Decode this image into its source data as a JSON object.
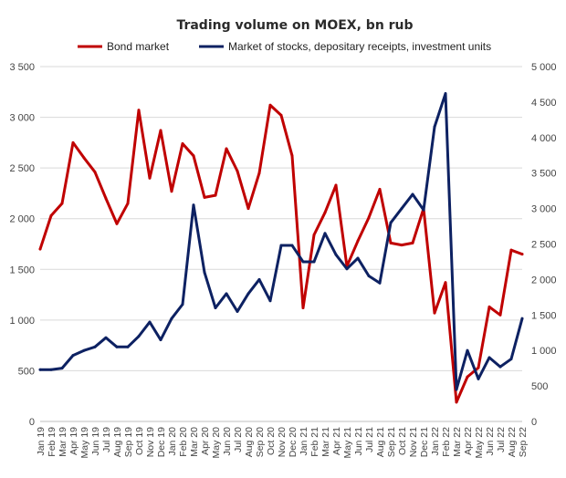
{
  "chart_data": {
    "type": "line",
    "title": "Trading volume on MOEX, bn rub",
    "legend_placement": "top",
    "grid": true,
    "x": [
      "Jan 19",
      "Feb 19",
      "Mar 19",
      "Apr 19",
      "May 19",
      "Jun 19",
      "Jul 19",
      "Aug 19",
      "Sep 19",
      "Oct 19",
      "Nov 19",
      "Dec 19",
      "Jan 20",
      "Feb 20",
      "Mar 20",
      "Apr 20",
      "May 20",
      "Jun 20",
      "Jul 20",
      "Aug 20",
      "Sep 20",
      "Oct 20",
      "Nov 20",
      "Dec 20",
      "Jan 21",
      "Feb 21",
      "Mar 21",
      "Apr 21",
      "May 21",
      "Jun 21",
      "Jul 21",
      "Aug 21",
      "Sep 21",
      "Oct 21",
      "Nov 21",
      "Dec 21",
      "Jan 22",
      "Feb 22",
      "Mar 22",
      "Apr 22",
      "May 22",
      "Jun 22",
      "Jul 22",
      "Aug 22",
      "Sep 22"
    ],
    "y_left": {
      "ylim": [
        0,
        3500
      ],
      "ticks": [
        0,
        500,
        1000,
        1500,
        2000,
        2500,
        3000,
        3500
      ],
      "tick_labels": [
        "0",
        "500",
        "1 000",
        "1 500",
        "2 000",
        "2 500",
        "3 000",
        "3 500"
      ]
    },
    "y_right": {
      "ylim": [
        0,
        5000
      ],
      "ticks": [
        0,
        500,
        1000,
        1500,
        2000,
        2500,
        3000,
        3500,
        4000,
        4500,
        5000
      ],
      "tick_labels": [
        "0",
        "500",
        "1 000",
        "1 500",
        "2 000",
        "2 500",
        "3 000",
        "3 500",
        "4 000",
        "4 500",
        "5 000"
      ]
    },
    "series": [
      {
        "name": "Bond market",
        "axis": "left",
        "color": "#c00000",
        "values": [
          1700,
          2030,
          2150,
          2750,
          2600,
          2460,
          2200,
          1950,
          2150,
          3070,
          2400,
          2870,
          2270,
          2740,
          2620,
          2210,
          2230,
          2690,
          2470,
          2100,
          2450,
          3120,
          3020,
          2620,
          1120,
          1840,
          2060,
          2330,
          1530,
          1780,
          2010,
          2290,
          1760,
          1740,
          1760,
          2100,
          1070,
          1370,
          190,
          440,
          530,
          1130,
          1050,
          1690,
          1650
        ]
      },
      {
        "name": "Market of stocks, depositary receipts, investment units",
        "axis": "right",
        "color": "#0d2162",
        "values": [
          730,
          730,
          750,
          930,
          1000,
          1050,
          1180,
          1050,
          1050,
          1200,
          1400,
          1150,
          1450,
          1650,
          3050,
          2100,
          1600,
          1800,
          1550,
          1800,
          2000,
          1700,
          2480,
          2480,
          2250,
          2250,
          2650,
          2350,
          2150,
          2300,
          2050,
          1950,
          2800,
          3000,
          3200,
          2980,
          4150,
          4620,
          450,
          1000,
          600,
          900,
          770,
          880,
          1450
        ]
      }
    ]
  }
}
